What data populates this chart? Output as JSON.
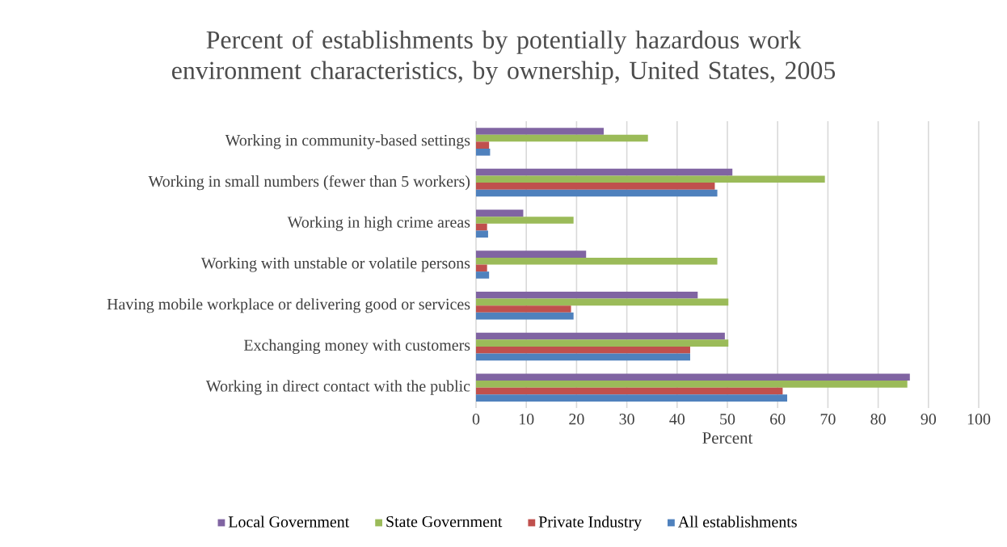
{
  "chart_data": {
    "type": "bar",
    "orientation": "horizontal",
    "title": "Percent of establishments by potentially hazardous work environment characteristics, by ownership, United States, 2005",
    "xlabel": "Percent",
    "categories": [
      "Working in community-based settings",
      "Working in small numbers (fewer than 5 workers)",
      "Working in high crime areas",
      "Working with unstable or volatile persons",
      "Having mobile workplace or delivering good or services",
      "Exchanging money with customers",
      "Working in direct contact with the public"
    ],
    "series": [
      {
        "name": "Local Government",
        "color": "#8064a2",
        "values": [
          25.4,
          51.0,
          9.4,
          21.9,
          44.1,
          49.5,
          86.3
        ]
      },
      {
        "name": "State Government",
        "color": "#9bbb59",
        "values": [
          34.2,
          69.4,
          19.4,
          48.0,
          50.2,
          50.2,
          85.8
        ]
      },
      {
        "name": "Private Industry",
        "color": "#c0504d",
        "values": [
          2.6,
          47.5,
          2.2,
          2.2,
          18.9,
          42.6,
          61.0
        ]
      },
      {
        "name": "All establishments",
        "color": "#4f81bd",
        "values": [
          2.8,
          48.0,
          2.4,
          2.6,
          19.4,
          42.6,
          61.9
        ]
      }
    ],
    "xlim": [
      0,
      100
    ],
    "xticks": [
      0,
      10,
      20,
      30,
      40,
      50,
      60,
      70,
      80,
      90,
      100
    ],
    "grid": "x",
    "legend": "bottom"
  }
}
